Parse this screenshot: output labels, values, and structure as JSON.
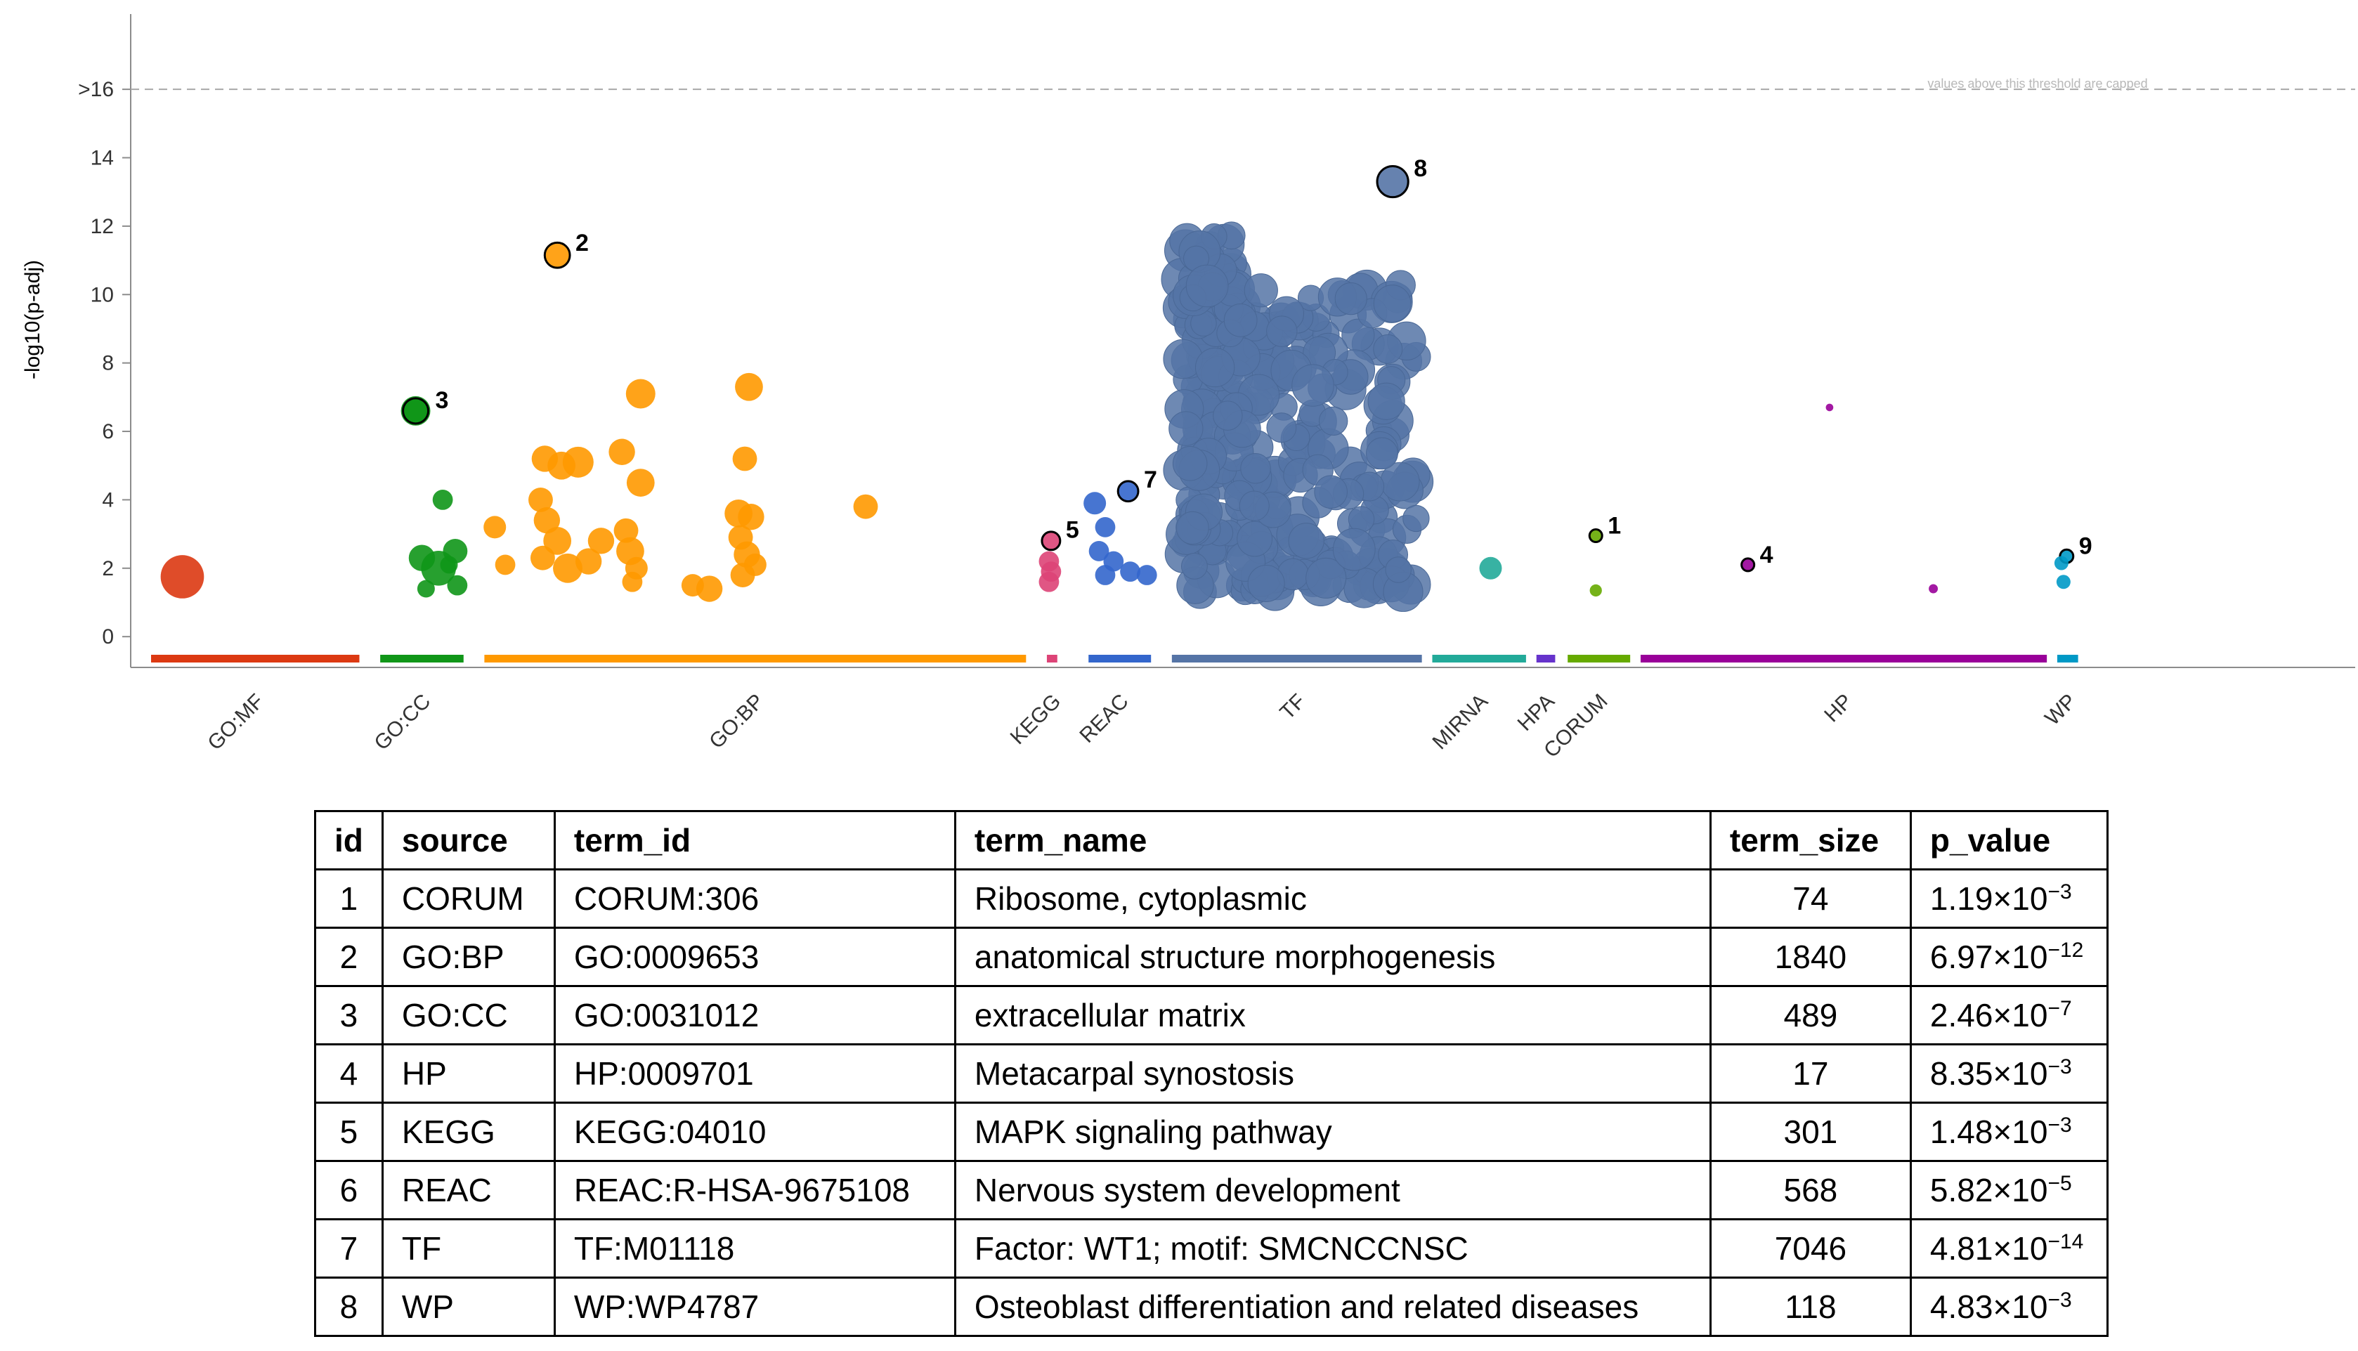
{
  "chart_data": {
    "type": "scatter",
    "ylabel": "-log10(p-adj)",
    "ylim": [
      -0.9,
      18.2
    ],
    "y_ticks": [
      "0",
      "2",
      "4",
      "6",
      "8",
      "10",
      "12",
      "14",
      ">16"
    ],
    "threshold_note": "values above this threshold are capped",
    "sources": [
      {
        "name": "GO:MF",
        "color": "#dc3912",
        "range": [
          0.0,
          0.1
        ]
      },
      {
        "name": "GO:CC",
        "color": "#109618",
        "range": [
          0.11,
          0.15
        ]
      },
      {
        "name": "GO:BP",
        "color": "#ff9900",
        "range": [
          0.16,
          0.42
        ]
      },
      {
        "name": "KEGG",
        "color": "#dd4477",
        "range": [
          0.43,
          0.435
        ]
      },
      {
        "name": "REAC",
        "color": "#3366cc",
        "range": [
          0.45,
          0.48
        ]
      },
      {
        "name": "TF",
        "color": "#5574a6",
        "range": [
          0.49,
          0.61
        ]
      },
      {
        "name": "MIRNA",
        "color": "#22aa99",
        "range": [
          0.615,
          0.66
        ]
      },
      {
        "name": "HPA",
        "color": "#6633cc",
        "range": [
          0.665,
          0.674
        ]
      },
      {
        "name": "CORUM",
        "color": "#66aa00",
        "range": [
          0.68,
          0.71
        ]
      },
      {
        "name": "HP",
        "color": "#990099",
        "range": [
          0.715,
          0.91
        ]
      },
      {
        "name": "WP",
        "color": "#0099c6",
        "range": [
          0.915,
          0.925
        ]
      }
    ],
    "points": [
      {
        "source": "GO:MF",
        "x": 0.015,
        "y": 1.75,
        "size": 2000
      },
      {
        "source": "GO:CC",
        "x": 0.127,
        "y": 6.6,
        "size": 800
      },
      {
        "source": "GO:CC",
        "x": 0.14,
        "y": 4.0,
        "size": 300
      },
      {
        "source": "GO:CC",
        "x": 0.13,
        "y": 2.3,
        "size": 600
      },
      {
        "source": "GO:CC",
        "x": 0.146,
        "y": 2.5,
        "size": 500
      },
      {
        "source": "GO:CC",
        "x": 0.138,
        "y": 2.0,
        "size": 1200
      },
      {
        "source": "GO:CC",
        "x": 0.132,
        "y": 1.4,
        "size": 200
      },
      {
        "source": "GO:CC",
        "x": 0.147,
        "y": 1.5,
        "size": 300
      },
      {
        "source": "GO:CC",
        "x": 0.143,
        "y": 2.1,
        "size": 200
      },
      {
        "source": "GO:BP",
        "x": 0.195,
        "y": 11.15,
        "size": 700,
        "highlight": "2"
      },
      {
        "source": "GO:BP",
        "x": 0.235,
        "y": 7.1,
        "size": 800
      },
      {
        "source": "GO:BP",
        "x": 0.287,
        "y": 7.3,
        "size": 700
      },
      {
        "source": "GO:BP",
        "x": 0.189,
        "y": 5.2,
        "size": 600
      },
      {
        "source": "GO:BP",
        "x": 0.197,
        "y": 5.0,
        "size": 700
      },
      {
        "source": "GO:BP",
        "x": 0.205,
        "y": 5.1,
        "size": 900
      },
      {
        "source": "GO:BP",
        "x": 0.226,
        "y": 5.4,
        "size": 600
      },
      {
        "source": "GO:BP",
        "x": 0.285,
        "y": 5.2,
        "size": 500
      },
      {
        "source": "GO:BP",
        "x": 0.235,
        "y": 4.5,
        "size": 700
      },
      {
        "source": "GO:BP",
        "x": 0.165,
        "y": 3.2,
        "size": 400
      },
      {
        "source": "GO:BP",
        "x": 0.17,
        "y": 2.1,
        "size": 300
      },
      {
        "source": "GO:BP",
        "x": 0.187,
        "y": 4.0,
        "size": 500
      },
      {
        "source": "GO:BP",
        "x": 0.19,
        "y": 3.4,
        "size": 600
      },
      {
        "source": "GO:BP",
        "x": 0.195,
        "y": 2.8,
        "size": 700
      },
      {
        "source": "GO:BP",
        "x": 0.188,
        "y": 2.3,
        "size": 500
      },
      {
        "source": "GO:BP",
        "x": 0.2,
        "y": 2.0,
        "size": 800
      },
      {
        "source": "GO:BP",
        "x": 0.21,
        "y": 2.2,
        "size": 600
      },
      {
        "source": "GO:BP",
        "x": 0.216,
        "y": 2.8,
        "size": 600
      },
      {
        "source": "GO:BP",
        "x": 0.228,
        "y": 3.1,
        "size": 500
      },
      {
        "source": "GO:BP",
        "x": 0.23,
        "y": 2.5,
        "size": 700
      },
      {
        "source": "GO:BP",
        "x": 0.233,
        "y": 2.0,
        "size": 400
      },
      {
        "source": "GO:BP",
        "x": 0.231,
        "y": 1.6,
        "size": 300
      },
      {
        "source": "GO:BP",
        "x": 0.26,
        "y": 1.5,
        "size": 400
      },
      {
        "source": "GO:BP",
        "x": 0.268,
        "y": 1.4,
        "size": 600
      },
      {
        "source": "GO:BP",
        "x": 0.282,
        "y": 3.6,
        "size": 700
      },
      {
        "source": "GO:BP",
        "x": 0.288,
        "y": 3.5,
        "size": 600
      },
      {
        "source": "GO:BP",
        "x": 0.283,
        "y": 2.9,
        "size": 500
      },
      {
        "source": "GO:BP",
        "x": 0.286,
        "y": 2.4,
        "size": 600
      },
      {
        "source": "GO:BP",
        "x": 0.284,
        "y": 1.8,
        "size": 500
      },
      {
        "source": "GO:BP",
        "x": 0.29,
        "y": 2.1,
        "size": 400
      },
      {
        "source": "GO:BP",
        "x": 0.343,
        "y": 3.8,
        "size": 500
      },
      {
        "source": "KEGG",
        "x": 0.432,
        "y": 2.8,
        "size": 300,
        "highlight": "5"
      },
      {
        "source": "KEGG",
        "x": 0.431,
        "y": 2.2,
        "size": 300
      },
      {
        "source": "KEGG",
        "x": 0.432,
        "y": 1.9,
        "size": 300
      },
      {
        "source": "KEGG",
        "x": 0.431,
        "y": 1.6,
        "size": 300
      },
      {
        "source": "REAC",
        "x": 0.469,
        "y": 4.25,
        "size": 400,
        "highlight": "7"
      },
      {
        "source": "REAC",
        "x": 0.453,
        "y": 3.9,
        "size": 400
      },
      {
        "source": "REAC",
        "x": 0.458,
        "y": 3.2,
        "size": 300
      },
      {
        "source": "REAC",
        "x": 0.455,
        "y": 2.5,
        "size": 300
      },
      {
        "source": "REAC",
        "x": 0.462,
        "y": 2.2,
        "size": 300
      },
      {
        "source": "REAC",
        "x": 0.458,
        "y": 1.8,
        "size": 300
      },
      {
        "source": "REAC",
        "x": 0.47,
        "y": 1.9,
        "size": 300
      },
      {
        "source": "REAC",
        "x": 0.478,
        "y": 1.8,
        "size": 300
      },
      {
        "source": "TF",
        "x": 0.596,
        "y": 13.3,
        "size": 7046,
        "highlight": "8"
      },
      {
        "source": "MIRNA",
        "x": 0.643,
        "y": 2.0,
        "size": 400
      },
      {
        "source": "CORUM",
        "x": 0.6935,
        "y": 2.95,
        "size": 74,
        "highlight": "1"
      },
      {
        "source": "CORUM",
        "x": 0.6935,
        "y": 1.35,
        "size": 60
      },
      {
        "source": "HP",
        "x": 0.7665,
        "y": 2.1,
        "size": 17,
        "highlight": "4"
      },
      {
        "source": "HP",
        "x": 0.8555,
        "y": 1.4,
        "size": 17
      },
      {
        "source": "HP",
        "x": 0.8057,
        "y": 6.7,
        "size": 5
      },
      {
        "source": "WP",
        "x": 0.9195,
        "y": 2.35,
        "size": 118,
        "highlight": "9"
      },
      {
        "source": "WP",
        "x": 0.917,
        "y": 2.15,
        "size": 100
      },
      {
        "source": "WP",
        "x": 0.918,
        "y": 1.6,
        "size": 100
      }
    ],
    "highlights": [
      "1",
      "2",
      "3",
      "4",
      "5",
      "7",
      "8",
      "9"
    ]
  },
  "table": {
    "headers": [
      "id",
      "source",
      "term_id",
      "term_name",
      "term_size",
      "p_value"
    ],
    "rows": [
      {
        "id": "1",
        "source": "CORUM",
        "term_id": "CORUM:306",
        "term_name": "Ribosome, cytoplasmic",
        "term_size": "74",
        "p_mant": "1.19",
        "p_exp": "−3"
      },
      {
        "id": "2",
        "source": "GO:BP",
        "term_id": "GO:0009653",
        "term_name": "anatomical structure morphogenesis",
        "term_size": "1840",
        "p_mant": "6.97",
        "p_exp": "−12"
      },
      {
        "id": "3",
        "source": "GO:CC",
        "term_id": "GO:0031012",
        "term_name": "extracellular matrix",
        "term_size": "489",
        "p_mant": "2.46",
        "p_exp": "−7"
      },
      {
        "id": "4",
        "source": "HP",
        "term_id": "HP:0009701",
        "term_name": "Metacarpal synostosis",
        "term_size": "17",
        "p_mant": "8.35",
        "p_exp": "−3"
      },
      {
        "id": "5",
        "source": "KEGG",
        "term_id": "KEGG:04010",
        "term_name": "MAPK signaling pathway",
        "term_size": "301",
        "p_mant": "1.48",
        "p_exp": "−3"
      },
      {
        "id": "6",
        "source": "REAC",
        "term_id": "REAC:R-HSA-9675108",
        "term_name": "Nervous system development",
        "term_size": "568",
        "p_mant": "5.82",
        "p_exp": "−5"
      },
      {
        "id": "7",
        "source": "TF",
        "term_id": "TF:M01118",
        "term_name": "Factor: WT1; motif: SMCNCCNSC",
        "term_size": "7046",
        "p_mant": "4.81",
        "p_exp": "−14"
      },
      {
        "id": "8",
        "source": "WP",
        "term_id": "WP:WP4787",
        "term_name": "Osteoblast differentiation and related diseases",
        "term_size": "118",
        "p_mant": "4.83",
        "p_exp": "−3"
      }
    ],
    "times_sign": "×10"
  }
}
